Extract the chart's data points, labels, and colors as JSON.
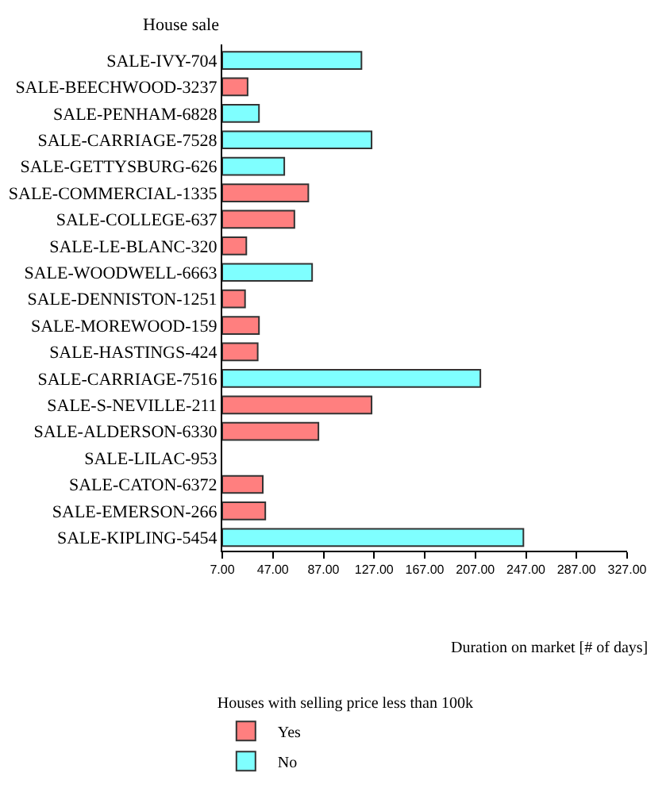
{
  "chart_data": {
    "type": "bar",
    "orientation": "horizontal",
    "ylabel": "House sale",
    "xlabel": "Duration on market [# of days]",
    "legend_title": "Houses with selling price less than 100k",
    "legend": "bottom left",
    "grid": false,
    "categories": [
      "SALE-IVY-704",
      "SALE-BEECHWOOD-3237",
      "SALE-PENHAM-6828",
      "SALE-CARRIAGE-7528",
      "SALE-GETTYSBURG-626",
      "SALE-COMMERCIAL-1335",
      "SALE-COLLEGE-637",
      "SALE-LE-BLANC-320",
      "SALE-WOODWELL-6663",
      "SALE-DENNISTON-1251",
      "SALE-MOREWOOD-159",
      "SALE-HASTINGS-424",
      "SALE-CARRIAGE-7516",
      "SALE-S-NEVILLE-211",
      "SALE-ALDERSON-6330",
      "SALE-LILAC-953",
      "SALE-CATON-6372",
      "SALE-EMERSON-266",
      "SALE-KIPLING-5454"
    ],
    "series": [
      {
        "name": "Yes",
        "color": "#ff7f7f",
        "values": [
          null,
          27,
          null,
          null,
          null,
          75,
          64,
          26,
          null,
          25,
          36,
          35,
          null,
          125,
          83,
          null,
          39,
          41,
          null
        ]
      },
      {
        "name": "No",
        "color": "#7fffff",
        "values": [
          117,
          null,
          36,
          125,
          56,
          null,
          null,
          null,
          78,
          null,
          null,
          null,
          211,
          null,
          null,
          null,
          null,
          null,
          245
        ]
      }
    ],
    "xlim": [
      7,
      327
    ],
    "xticks": [
      {
        "value": 7,
        "label": "7.00"
      },
      {
        "value": 47,
        "label": "47.00"
      },
      {
        "value": 87,
        "label": "87.00"
      },
      {
        "value": 127,
        "label": "127.00"
      },
      {
        "value": 167,
        "label": "167.00"
      },
      {
        "value": 207,
        "label": "207.00"
      },
      {
        "value": 247,
        "label": "247.00"
      },
      {
        "value": 287,
        "label": "287.00"
      },
      {
        "value": 327,
        "label": "327.00"
      }
    ]
  }
}
